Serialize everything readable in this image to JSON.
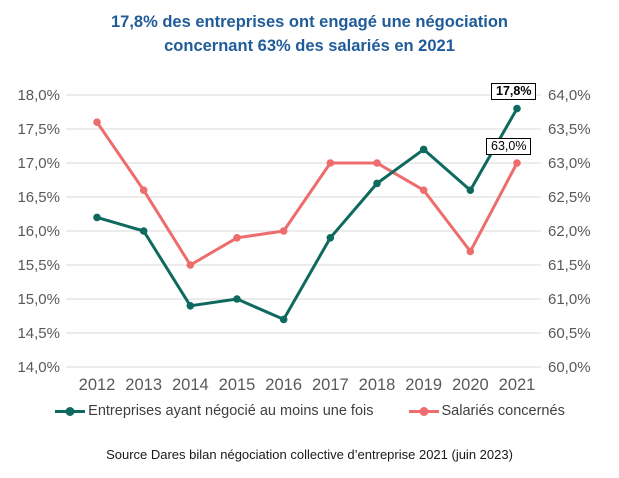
{
  "title": {
    "line1": "17,8% des entreprises ont engagé une négociation",
    "line2": "concernant 63% des salariés en 2021"
  },
  "source": "Source Dares bilan négociation collective d’entreprise 2021 (juin 2023)",
  "colors": {
    "title": "#1F5C99",
    "axis_text": "#595959",
    "gridline": "#D8D8D8",
    "background": "#FFFFFF",
    "series_entreprises": "#0E6A5E",
    "series_salaries": "#ED6C6D",
    "end_label_border": "#000000"
  },
  "chart_data": {
    "type": "line",
    "categories": [
      "2012",
      "2013",
      "2014",
      "2015",
      "2016",
      "2017",
      "2018",
      "2019",
      "2020",
      "2021"
    ],
    "series": [
      {
        "name": "Entreprises ayant négocié au moins une fois",
        "axis": "left",
        "color": "#0E6A5E",
        "values": [
          16.2,
          16.0,
          14.9,
          15.0,
          14.7,
          15.9,
          16.7,
          17.2,
          16.6,
          17.8
        ]
      },
      {
        "name": "Salariés concernés",
        "axis": "right",
        "color": "#ED6C6D",
        "values": [
          63.6,
          62.6,
          61.5,
          61.9,
          62.0,
          63.0,
          63.0,
          62.6,
          61.7,
          63.0
        ]
      }
    ],
    "left_axis": {
      "min": 14.0,
      "max": 18.0,
      "step": 0.5,
      "format": "percent-fr",
      "tick_labels": [
        "14,0%",
        "14,5%",
        "15,0%",
        "15,5%",
        "16,0%",
        "16,5%",
        "17,0%",
        "17,5%",
        "18,0%"
      ]
    },
    "right_axis": {
      "min": 60.0,
      "max": 64.0,
      "step": 0.5,
      "format": "percent-fr",
      "tick_labels": [
        "60,0%",
        "60,5%",
        "61,0%",
        "61,5%",
        "62,0%",
        "62,5%",
        "63,0%",
        "63,5%",
        "64,0%"
      ]
    },
    "grid": "horizontal",
    "legend_position": "bottom",
    "end_labels": [
      {
        "text": "17,8%",
        "series": "Entreprises ayant négocié au moins une fois",
        "bold": true
      },
      {
        "text": "63,0%",
        "series": "Salariés concernés",
        "bold": false
      }
    ]
  }
}
